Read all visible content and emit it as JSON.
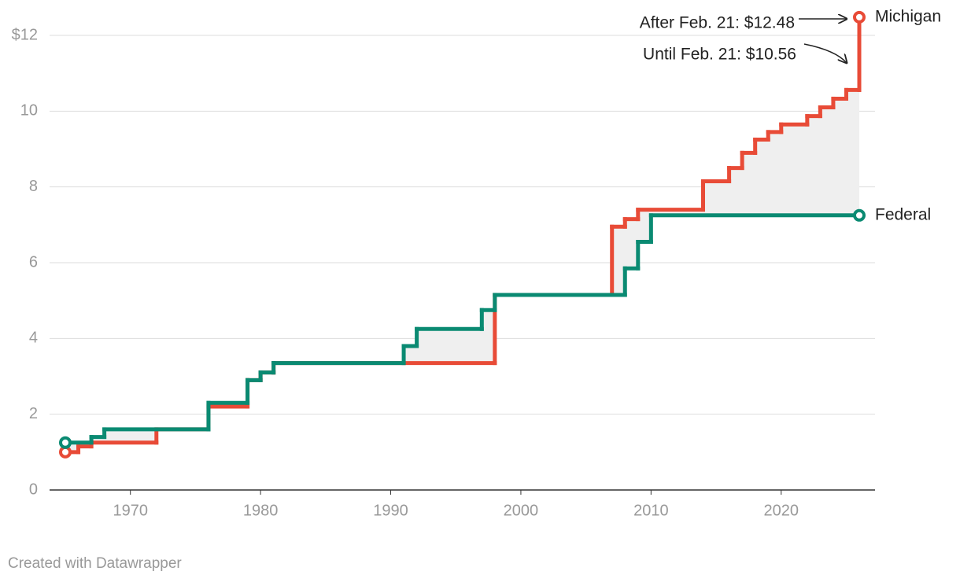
{
  "chart_data": {
    "type": "step",
    "xlim": [
      1965,
      2026
    ],
    "ylim": [
      0,
      12
    ],
    "yticks": [
      0,
      2,
      4,
      6,
      8,
      10,
      {
        "value": 12,
        "label": "$12"
      }
    ],
    "xticks": [
      1970,
      1980,
      1990,
      2000,
      2010,
      2020
    ],
    "grid": true,
    "series": [
      {
        "name": "Michigan",
        "color": "#e84b37",
        "x": [
          1965,
          1966,
          1967,
          1972,
          1976,
          1979,
          1980,
          1981,
          1998,
          2007,
          2008,
          2009,
          2014,
          2016,
          2017,
          2018,
          2019,
          2020,
          2022,
          2023,
          2024,
          2025,
          2026
        ],
        "values": [
          1.0,
          1.15,
          1.25,
          1.6,
          2.2,
          2.9,
          3.1,
          3.35,
          5.15,
          6.95,
          7.15,
          7.4,
          8.15,
          8.5,
          8.9,
          9.25,
          9.45,
          9.65,
          9.87,
          10.1,
          10.33,
          10.56,
          12.48
        ]
      },
      {
        "name": "Federal",
        "color": "#0a8a72",
        "x": [
          1965,
          1967,
          1968,
          1976,
          1979,
          1980,
          1981,
          1991,
          1992,
          1997,
          1998,
          2008,
          2009,
          2010,
          2026
        ],
        "values": [
          1.25,
          1.4,
          1.6,
          2.3,
          2.9,
          3.1,
          3.35,
          3.8,
          4.25,
          4.75,
          5.15,
          5.85,
          6.55,
          7.25,
          7.25
        ]
      }
    ],
    "annotations": [
      "After Feb. 21: $12.48",
      "Until Feb. 21: $10.56"
    ],
    "credit": "Created with Datawrapper"
  }
}
